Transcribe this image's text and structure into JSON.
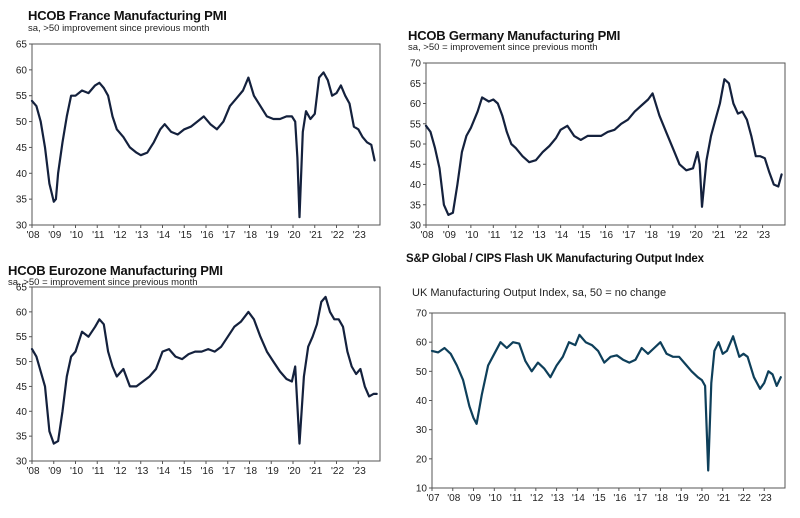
{
  "chart_data": [
    {
      "type": "line",
      "title": "HCOB France Manufacturing PMI",
      "subtitle": "sa, >50 improvement since previous month",
      "ylim": [
        30,
        65
      ],
      "yticks": [
        30,
        35,
        40,
        45,
        50,
        55,
        60,
        65
      ],
      "xlim": [
        2008,
        2024
      ],
      "xticks": [
        2008,
        2009,
        2010,
        2011,
        2012,
        2013,
        2014,
        2015,
        2016,
        2017,
        2018,
        2019,
        2020,
        2021,
        2022,
        2023
      ],
      "xtick_labels": [
        "'08",
        "'09",
        "'10",
        "'11",
        "'12",
        "'13",
        "'14",
        "'15",
        "'16",
        "'17",
        "'18",
        "'19",
        "'20",
        "'21",
        "'22",
        "'23"
      ],
      "grid": false,
      "color": "#14213d",
      "series": [
        {
          "x": [
            2008.0,
            2008.2,
            2008.4,
            2008.6,
            2008.8,
            2009.0,
            2009.1,
            2009.2,
            2009.4,
            2009.6,
            2009.8,
            2010.0,
            2010.3,
            2010.6,
            2010.9,
            2011.1,
            2011.3,
            2011.5,
            2011.7,
            2011.9,
            2012.2,
            2012.5,
            2012.8,
            2013.0,
            2013.3,
            2013.6,
            2013.9,
            2014.1,
            2014.4,
            2014.7,
            2015.0,
            2015.3,
            2015.6,
            2015.9,
            2016.2,
            2016.5,
            2016.8,
            2017.1,
            2017.4,
            2017.7,
            2017.95,
            2018.2,
            2018.5,
            2018.8,
            2019.1,
            2019.4,
            2019.7,
            2019.95,
            2020.1,
            2020.2,
            2020.3,
            2020.45,
            2020.6,
            2020.8,
            2021.0,
            2021.2,
            2021.4,
            2021.6,
            2021.8,
            2022.0,
            2022.2,
            2022.4,
            2022.6,
            2022.8,
            2023.0,
            2023.2,
            2023.4,
            2023.6,
            2023.75
          ],
          "y": [
            54,
            53,
            50,
            45,
            38,
            34.5,
            35,
            40,
            46,
            51,
            55,
            55,
            56,
            55.5,
            57,
            57.5,
            56.5,
            55,
            51,
            48.5,
            47,
            45,
            44,
            43.5,
            44,
            46,
            48.5,
            49.5,
            48,
            47.5,
            48.5,
            49,
            50,
            51,
            49.5,
            48.5,
            50,
            53,
            54.5,
            56,
            58.5,
            55,
            53,
            51,
            50.5,
            50.5,
            51,
            51,
            50,
            43,
            31.5,
            48,
            52,
            50.5,
            51.5,
            58.5,
            59.5,
            58,
            55,
            55.5,
            57,
            55,
            53.5,
            49,
            48.5,
            47,
            46,
            45.5,
            42.5
          ]
        }
      ]
    },
    {
      "type": "line",
      "title": "HCOB Germany Manufacturing PMI",
      "subtitle": "sa, >50 = improvement since previous month",
      "ylim": [
        30,
        70
      ],
      "yticks": [
        30,
        35,
        40,
        45,
        50,
        55,
        60,
        65,
        70
      ],
      "xlim": [
        2008,
        2024
      ],
      "xticks": [
        2008,
        2009,
        2010,
        2011,
        2012,
        2013,
        2014,
        2015,
        2016,
        2017,
        2018,
        2019,
        2020,
        2021,
        2022,
        2023
      ],
      "xtick_labels": [
        "'08",
        "'09",
        "'10",
        "'11",
        "'12",
        "'13",
        "'14",
        "'15",
        "'16",
        "'17",
        "'18",
        "'19",
        "'20",
        "'21",
        "'22",
        "'23"
      ],
      "grid": false,
      "color": "#14213d",
      "series": [
        {
          "x": [
            2008.0,
            2008.2,
            2008.4,
            2008.6,
            2008.8,
            2009.0,
            2009.2,
            2009.4,
            2009.6,
            2009.8,
            2010.0,
            2010.3,
            2010.5,
            2010.8,
            2011.0,
            2011.2,
            2011.4,
            2011.6,
            2011.8,
            2012.0,
            2012.3,
            2012.6,
            2012.9,
            2013.2,
            2013.5,
            2013.8,
            2014.0,
            2014.3,
            2014.6,
            2014.9,
            2015.2,
            2015.5,
            2015.8,
            2016.1,
            2016.4,
            2016.7,
            2017.0,
            2017.3,
            2017.6,
            2017.9,
            2018.1,
            2018.4,
            2018.7,
            2019.0,
            2019.3,
            2019.6,
            2019.9,
            2020.1,
            2020.2,
            2020.3,
            2020.5,
            2020.7,
            2020.9,
            2021.1,
            2021.3,
            2021.5,
            2021.7,
            2021.9,
            2022.1,
            2022.3,
            2022.5,
            2022.7,
            2022.9,
            2023.1,
            2023.3,
            2023.5,
            2023.7,
            2023.85
          ],
          "y": [
            54.5,
            53,
            49,
            44,
            35,
            32.5,
            33,
            40,
            48,
            52,
            54,
            58,
            61.5,
            60.5,
            61,
            60,
            57,
            53,
            50,
            49,
            47,
            45.5,
            46,
            48,
            49.5,
            51.5,
            53.5,
            54.5,
            52,
            51,
            52,
            52,
            52,
            53,
            53.5,
            55,
            56,
            58,
            59.5,
            61,
            62.5,
            57,
            53,
            49,
            45,
            43.5,
            44,
            48,
            45,
            34.5,
            46,
            52,
            56,
            60,
            66,
            65,
            60,
            57.5,
            58,
            56,
            52,
            47,
            47,
            46.5,
            43,
            40,
            39.5,
            42.5
          ]
        }
      ]
    },
    {
      "type": "line",
      "title": "HCOB Eurozone Manufacturing PMI",
      "subtitle": "sa, >50 = improvement since previous month",
      "ylim": [
        30,
        65
      ],
      "yticks": [
        30,
        35,
        40,
        45,
        50,
        55,
        60,
        65
      ],
      "xlim": [
        2008,
        2024
      ],
      "xticks": [
        2008,
        2009,
        2010,
        2011,
        2012,
        2013,
        2014,
        2015,
        2016,
        2017,
        2018,
        2019,
        2020,
        2021,
        2022,
        2023
      ],
      "xtick_labels": [
        "'08",
        "'09",
        "'10",
        "'11",
        "'12",
        "'13",
        "'14",
        "'15",
        "'16",
        "'17",
        "'18",
        "'19",
        "'20",
        "'21",
        "'22",
        "'23"
      ],
      "grid": false,
      "color": "#14213d",
      "series": [
        {
          "x": [
            2008.0,
            2008.2,
            2008.4,
            2008.6,
            2008.8,
            2009.0,
            2009.2,
            2009.4,
            2009.6,
            2009.8,
            2010.0,
            2010.3,
            2010.6,
            2010.9,
            2011.1,
            2011.3,
            2011.5,
            2011.7,
            2011.9,
            2012.2,
            2012.5,
            2012.8,
            2013.1,
            2013.4,
            2013.7,
            2014.0,
            2014.3,
            2014.6,
            2014.9,
            2015.2,
            2015.5,
            2015.8,
            2016.1,
            2016.4,
            2016.7,
            2017.0,
            2017.3,
            2017.6,
            2017.95,
            2018.2,
            2018.5,
            2018.8,
            2019.1,
            2019.4,
            2019.7,
            2019.95,
            2020.1,
            2020.3,
            2020.5,
            2020.7,
            2020.9,
            2021.1,
            2021.3,
            2021.5,
            2021.7,
            2021.9,
            2022.1,
            2022.3,
            2022.5,
            2022.7,
            2022.9,
            2023.1,
            2023.3,
            2023.5,
            2023.7,
            2023.85
          ],
          "y": [
            52.5,
            51,
            48,
            45,
            36,
            33.5,
            34,
            40,
            47,
            51,
            52,
            56,
            55,
            57,
            58.5,
            57.5,
            52,
            49,
            47,
            48.5,
            45,
            45,
            46,
            47,
            48.5,
            52,
            52.5,
            51,
            50.5,
            51.5,
            52,
            52,
            52.5,
            52,
            53,
            55,
            57,
            58,
            60,
            58.5,
            55,
            52,
            50,
            48,
            46.5,
            46,
            49,
            33.5,
            47,
            53,
            55,
            57.5,
            62,
            63,
            60,
            58.5,
            58.5,
            57,
            52,
            49,
            47.5,
            48.5,
            45,
            43,
            43.5,
            43.5
          ]
        }
      ]
    },
    {
      "type": "line",
      "title": "S&P Global / CIPS Flash UK Manufacturing Output Index",
      "subtitle": "UK Manufacturing Output Index, sa, 50 = no change",
      "ylim": [
        10,
        70
      ],
      "yticks": [
        10,
        20,
        30,
        40,
        50,
        60,
        70
      ],
      "xlim": [
        2007,
        2024
      ],
      "xticks": [
        2007,
        2008,
        2009,
        2010,
        2011,
        2012,
        2013,
        2014,
        2015,
        2016,
        2017,
        2018,
        2019,
        2020,
        2021,
        2022,
        2023
      ],
      "xtick_labels": [
        "'07",
        "'08",
        "'09",
        "'10",
        "'11",
        "'12",
        "'13",
        "'14",
        "'15",
        "'16",
        "'17",
        "'18",
        "'19",
        "'20",
        "'21",
        "'22",
        "'23"
      ],
      "grid": false,
      "color": "#0e3f5a",
      "series": [
        {
          "x": [
            2007.0,
            2007.3,
            2007.6,
            2007.9,
            2008.2,
            2008.5,
            2008.8,
            2009.0,
            2009.15,
            2009.4,
            2009.7,
            2010.0,
            2010.3,
            2010.6,
            2010.9,
            2011.2,
            2011.5,
            2011.8,
            2012.1,
            2012.4,
            2012.7,
            2013.0,
            2013.3,
            2013.6,
            2013.9,
            2014.1,
            2014.4,
            2014.7,
            2015.0,
            2015.3,
            2015.6,
            2015.9,
            2016.2,
            2016.5,
            2016.8,
            2017.1,
            2017.4,
            2017.7,
            2018.0,
            2018.3,
            2018.6,
            2018.9,
            2019.2,
            2019.5,
            2019.8,
            2020.0,
            2020.15,
            2020.3,
            2020.45,
            2020.6,
            2020.8,
            2021.0,
            2021.2,
            2021.5,
            2021.8,
            2022.0,
            2022.2,
            2022.5,
            2022.8,
            2023.0,
            2023.2,
            2023.4,
            2023.6,
            2023.8
          ],
          "y": [
            57,
            56.5,
            58,
            56,
            52,
            47,
            38,
            34,
            32,
            42,
            52,
            56,
            60,
            58,
            60,
            59.5,
            53.5,
            50,
            53,
            51,
            48,
            52,
            55,
            60,
            59,
            62.5,
            60,
            59,
            57,
            53,
            55,
            55.5,
            54,
            53,
            54,
            58,
            56,
            58,
            60,
            56,
            55,
            55,
            52.5,
            50,
            48,
            47,
            45,
            16,
            46,
            57,
            60,
            56,
            57,
            62,
            55,
            56,
            55,
            48,
            44,
            46,
            50,
            49,
            45,
            48
          ]
        }
      ]
    }
  ]
}
